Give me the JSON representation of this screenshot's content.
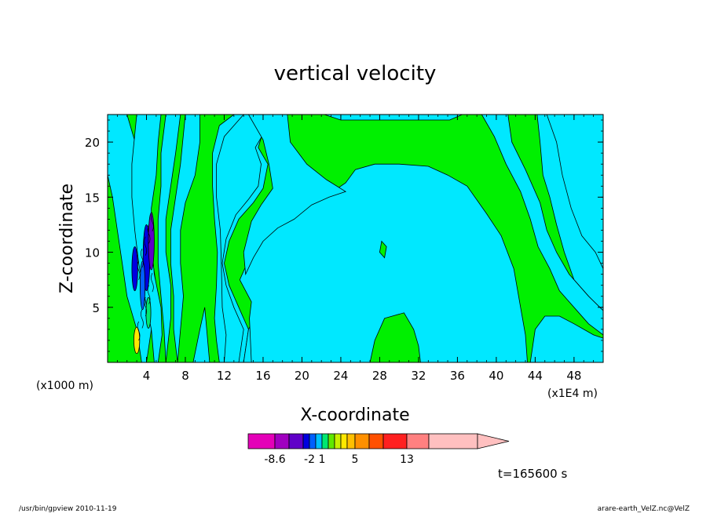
{
  "chart_data": {
    "type": "contour",
    "title": "vertical velocity",
    "xlabel": "X-coordinate",
    "ylabel": "Z-coordinate",
    "x_unit": "(x1E4 m)",
    "y_unit": "(x1000 m)",
    "xlim": [
      0,
      51
    ],
    "ylim": [
      0,
      22.5
    ],
    "x_ticks": [
      4,
      8,
      12,
      16,
      20,
      24,
      28,
      32,
      36,
      40,
      44,
      48
    ],
    "y_ticks": [
      5,
      10,
      15,
      20
    ],
    "colors": {
      "positive": "#00e8ff",
      "near_zero": "#00f000",
      "contour_line": "#000000"
    },
    "regions": [
      {
        "fill": "positive",
        "points": [
          [
            11.5,
            0
          ],
          [
            14,
            0
          ],
          [
            14.5,
            3
          ],
          [
            13.5,
            5
          ],
          [
            12.5,
            7
          ],
          [
            12,
            9
          ],
          [
            12.5,
            11
          ],
          [
            13.5,
            13
          ],
          [
            15,
            14.5
          ],
          [
            16,
            15.8
          ],
          [
            16.5,
            18
          ],
          [
            15.5,
            19.5
          ],
          [
            16,
            21
          ],
          [
            17,
            22.5
          ],
          [
            13,
            22.5
          ],
          [
            11.5,
            21.5
          ],
          [
            10.8,
            19
          ],
          [
            10.8,
            16
          ],
          [
            11,
            13
          ],
          [
            11.3,
            10
          ],
          [
            11.2,
            7
          ],
          [
            11,
            4
          ],
          [
            11.2,
            2
          ]
        ]
      },
      {
        "fill": "positive",
        "points": [
          [
            14,
            22.5
          ],
          [
            16.8,
            22.5
          ],
          [
            16.2,
            21
          ],
          [
            15.2,
            19.5
          ],
          [
            15.8,
            18
          ],
          [
            15.5,
            16
          ],
          [
            14.5,
            14.8
          ],
          [
            13.2,
            13.4
          ],
          [
            12.2,
            11.2
          ],
          [
            11.8,
            9
          ],
          [
            12.2,
            7
          ],
          [
            13,
            5
          ],
          [
            14,
            3
          ],
          [
            13.5,
            0
          ],
          [
            12,
            0
          ],
          [
            12.2,
            2.5
          ],
          [
            11.8,
            5
          ],
          [
            11.7,
            9
          ],
          [
            11.6,
            12
          ],
          [
            11.2,
            15
          ],
          [
            11.2,
            18
          ],
          [
            12,
            20.5
          ]
        ]
      },
      {
        "fill": "positive",
        "points": [
          [
            14,
            0
          ],
          [
            14.5,
            3
          ],
          [
            16,
            5.5
          ],
          [
            19,
            5.5
          ],
          [
            20,
            4
          ],
          [
            20,
            0
          ]
        ]
      },
      {
        "fill": "positive",
        "points": [
          [
            14.8,
            0
          ],
          [
            14.6,
            4
          ],
          [
            14.8,
            5.5
          ],
          [
            13.6,
            7.5
          ],
          [
            14.6,
            9.5
          ],
          [
            15.8,
            11.5
          ],
          [
            17.2,
            12.6
          ],
          [
            19,
            13.4
          ],
          [
            20.8,
            14.6
          ],
          [
            23,
            15.4
          ],
          [
            24.5,
            16.3
          ],
          [
            25.5,
            17.5
          ],
          [
            27.5,
            18
          ],
          [
            30,
            18
          ],
          [
            33,
            17.8
          ],
          [
            35,
            17
          ],
          [
            37,
            16
          ],
          [
            39,
            13.5
          ],
          [
            40.5,
            11.5
          ],
          [
            41.8,
            8.5
          ],
          [
            42.5,
            5
          ],
          [
            43,
            2.5
          ],
          [
            43.2,
            0
          ]
        ]
      },
      {
        "fill": "positive",
        "points": [
          [
            14.5,
            22.5
          ],
          [
            18.5,
            22.5
          ],
          [
            18.8,
            20
          ],
          [
            20.5,
            18
          ],
          [
            22.5,
            16.6
          ],
          [
            24.5,
            15.5
          ],
          [
            22.8,
            15
          ],
          [
            21,
            14.3
          ],
          [
            19.2,
            13
          ],
          [
            17.5,
            12.2
          ],
          [
            16,
            11
          ],
          [
            15,
            9.5
          ],
          [
            14.2,
            8
          ],
          [
            14,
            10
          ],
          [
            14.8,
            12.8
          ],
          [
            15.8,
            14.3
          ],
          [
            17,
            15.8
          ],
          [
            16.6,
            18
          ],
          [
            16,
            20.2
          ]
        ]
      },
      {
        "fill": "positive",
        "points": [
          [
            22.3,
            22.5
          ],
          [
            36.5,
            22.5
          ],
          [
            35.2,
            22
          ],
          [
            30,
            22
          ],
          [
            24,
            22
          ]
        ]
      },
      {
        "fill": "positive",
        "points": [
          [
            37.5,
            22.5
          ],
          [
            44.2,
            22.5
          ],
          [
            44.5,
            20
          ],
          [
            44.8,
            17
          ],
          [
            45.5,
            15
          ],
          [
            46.2,
            12.5
          ],
          [
            47,
            10
          ],
          [
            48,
            7.5
          ],
          [
            49.5,
            6
          ],
          [
            51,
            4.7
          ],
          [
            51,
            12.8
          ],
          [
            49.8,
            14.8
          ],
          [
            49,
            17
          ],
          [
            48.2,
            19.5
          ],
          [
            47.5,
            21.8
          ],
          [
            47.3,
            22.5
          ]
        ]
      },
      {
        "fill": "positive",
        "points": [
          [
            38.5,
            22.5
          ],
          [
            41.2,
            22.5
          ],
          [
            41.6,
            20
          ],
          [
            43,
            17.5
          ],
          [
            44.5,
            14.5
          ],
          [
            45.2,
            12
          ],
          [
            46.2,
            10
          ],
          [
            47.5,
            8
          ],
          [
            49.5,
            6
          ],
          [
            51,
            4.7
          ],
          [
            51,
            2.5
          ],
          [
            49.5,
            3.5
          ],
          [
            48,
            5
          ],
          [
            46.5,
            6.5
          ],
          [
            45.5,
            8.5
          ],
          [
            44.3,
            10.5
          ],
          [
            43.5,
            13
          ],
          [
            42.5,
            15.5
          ],
          [
            41,
            18
          ],
          [
            39.8,
            20.5
          ]
        ]
      },
      {
        "fill": "positive",
        "points": [
          [
            45.2,
            22.5
          ],
          [
            46.2,
            20
          ],
          [
            46.8,
            17
          ],
          [
            47.7,
            14
          ],
          [
            48.8,
            11.5
          ],
          [
            50.2,
            10
          ],
          [
            51,
            8.5
          ],
          [
            51,
            22.5
          ]
        ]
      },
      {
        "fill": "positive",
        "points": [
          [
            43.5,
            0
          ],
          [
            44,
            3
          ],
          [
            45,
            4.2
          ],
          [
            46.5,
            4.2
          ],
          [
            48,
            3.5
          ],
          [
            50,
            2.5
          ],
          [
            51,
            2.2
          ],
          [
            51,
            0
          ]
        ]
      },
      {
        "fill": "near_zero",
        "points": [
          [
            28,
            10
          ],
          [
            28.5,
            9.5
          ],
          [
            28.7,
            10.5
          ],
          [
            28.2,
            11
          ]
        ]
      },
      {
        "fill": "near_zero",
        "points": [
          [
            27,
            0
          ],
          [
            27.5,
            2
          ],
          [
            28.5,
            4
          ],
          [
            30.5,
            4.5
          ],
          [
            31.5,
            3
          ],
          [
            32,
            1.5
          ],
          [
            32.2,
            0
          ]
        ]
      },
      {
        "fill": "positive",
        "points": [
          [
            0,
            22.5
          ],
          [
            2,
            22.5
          ],
          [
            3,
            19.5
          ],
          [
            3.5,
            16
          ],
          [
            4,
            13
          ],
          [
            4.5,
            10
          ],
          [
            5,
            7
          ],
          [
            5,
            5
          ],
          [
            4.5,
            3
          ],
          [
            4,
            0
          ],
          [
            3.5,
            0
          ],
          [
            3,
            3
          ],
          [
            2,
            6
          ],
          [
            1.5,
            9
          ],
          [
            1,
            12
          ],
          [
            0.5,
            15
          ],
          [
            0,
            17
          ]
        ]
      },
      {
        "fill": "positive",
        "points": [
          [
            3,
            22.5
          ],
          [
            5.5,
            22.5
          ],
          [
            5.2,
            20
          ],
          [
            5,
            17
          ],
          [
            4.5,
            14
          ],
          [
            4.5,
            11
          ],
          [
            4.8,
            8
          ],
          [
            5.5,
            5
          ],
          [
            5.6,
            2.5
          ],
          [
            5.2,
            0
          ],
          [
            4.8,
            0
          ],
          [
            4.5,
            3
          ],
          [
            3.8,
            6
          ],
          [
            3.2,
            9
          ],
          [
            2.8,
            12
          ],
          [
            2.5,
            15
          ],
          [
            2.5,
            18
          ]
        ]
      },
      {
        "fill": "positive",
        "points": [
          [
            6,
            22.5
          ],
          [
            7.5,
            22.5
          ],
          [
            7,
            19
          ],
          [
            6.5,
            16
          ],
          [
            6,
            13
          ],
          [
            6,
            10
          ],
          [
            6.5,
            7
          ],
          [
            6.5,
            4
          ],
          [
            6,
            0
          ],
          [
            5.8,
            3
          ],
          [
            5.5,
            6
          ],
          [
            5.2,
            9
          ],
          [
            5.2,
            13
          ],
          [
            5.5,
            16
          ],
          [
            5.5,
            19
          ]
        ]
      },
      {
        "fill": "positive",
        "points": [
          [
            8,
            22.5
          ],
          [
            9.5,
            22.5
          ],
          [
            9.5,
            20
          ],
          [
            9,
            17
          ],
          [
            8,
            14.5
          ],
          [
            7.5,
            12
          ],
          [
            7.5,
            9
          ],
          [
            7.8,
            6
          ],
          [
            7.5,
            3
          ],
          [
            7.2,
            0
          ],
          [
            6.8,
            3
          ],
          [
            6.8,
            6
          ],
          [
            6.5,
            9
          ],
          [
            6.5,
            12
          ],
          [
            7,
            15
          ],
          [
            7.5,
            18
          ]
        ]
      },
      {
        "fill": "positive",
        "points": [
          [
            8.8,
            0
          ],
          [
            9.5,
            3
          ],
          [
            10,
            5
          ],
          [
            10.5,
            0
          ]
        ]
      }
    ]
  },
  "cbar": {
    "colors": [
      "#e400b8",
      "#a000c0",
      "#6000c8",
      "#0000e0",
      "#0060ff",
      "#00c0ff",
      "#00e870",
      "#60e800",
      "#c8f000",
      "#ffe800",
      "#ffc000",
      "#ff9000",
      "#ff5000",
      "#ff2020",
      "#ff8080",
      "#ffc0c0",
      "#ffc0c0"
    ],
    "tick_labels": [
      "-8.6",
      "-2",
      "1",
      "5",
      "13"
    ]
  },
  "annotation": {
    "time": "t=165600 s"
  },
  "footer": {
    "left": "/usr/bin/gpview   2010-11-19",
    "right": "arare-earth_VelZ.nc@VelZ"
  }
}
